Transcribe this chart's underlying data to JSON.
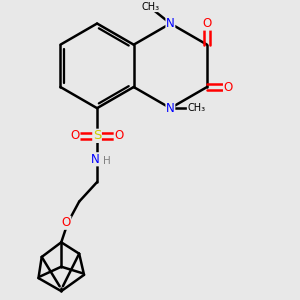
{
  "bg_color": "#e8e8e8",
  "atom_colors": {
    "N": "#0000ff",
    "O": "#ff0000",
    "S": "#cccc00",
    "C": "#000000",
    "H": "#808080"
  },
  "bond_color": "#000000",
  "bond_width": 1.8
}
